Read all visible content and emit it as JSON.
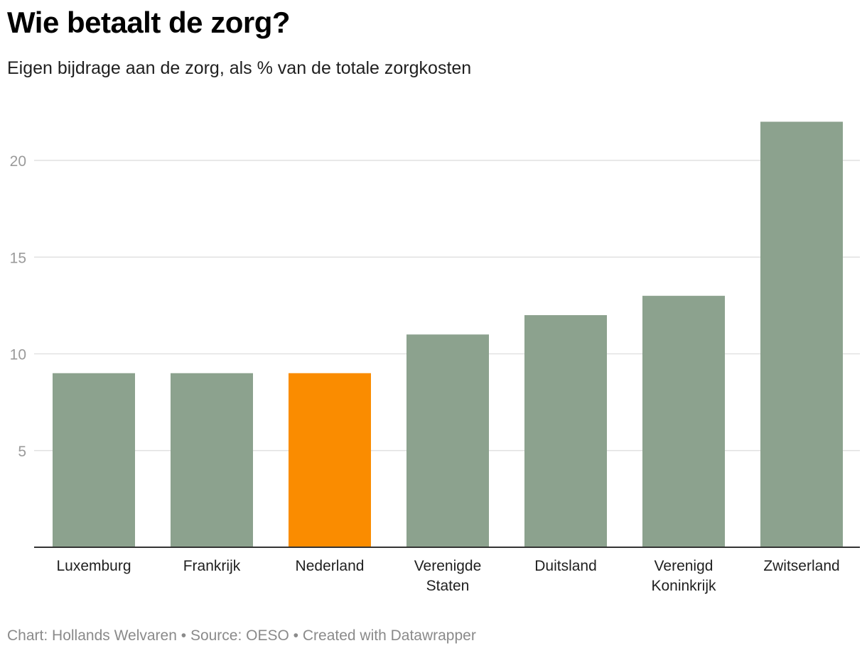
{
  "header": {
    "title": "Wie betaalt de zorg?",
    "subtitle": "Eigen bijdrage aan de zorg, als % van de totale zorgkosten"
  },
  "footer": {
    "credit_prefix": "Chart: ",
    "credit": "Hollands Welvaren",
    "source_prefix": "Source: ",
    "source": "OESO",
    "created_with": "Created with Datawrapper",
    "separator": " • "
  },
  "chart_data": {
    "type": "bar",
    "title": "Wie betaalt de zorg?",
    "subtitle": "Eigen bijdrage aan de zorg, als % van de totale zorgkosten",
    "xlabel": "",
    "ylabel": "",
    "categories": [
      "Luxemburg",
      "Frankrijk",
      "Nederland",
      "Verenigde Staten",
      "Duitsland",
      "Verenigd Koninkrijk",
      "Zwitserland"
    ],
    "category_lines": [
      [
        "Luxemburg"
      ],
      [
        "Frankrijk"
      ],
      [
        "Nederland"
      ],
      [
        "Verenigde",
        "Staten"
      ],
      [
        "Duitsland"
      ],
      [
        "Verenigd",
        "Koninkrijk"
      ],
      [
        "Zwitserland"
      ]
    ],
    "values": [
      9,
      9,
      9,
      11,
      12,
      13,
      22
    ],
    "ylim": [
      0,
      22
    ],
    "yticks": [
      5,
      10,
      15,
      20
    ],
    "grid": true,
    "legend": "none",
    "colors": {
      "default": "#8ca28e",
      "highlight": "#fa8c00",
      "highlight_category": "Nederland",
      "grid": "#e1e1e1",
      "baseline": "#333333"
    }
  }
}
